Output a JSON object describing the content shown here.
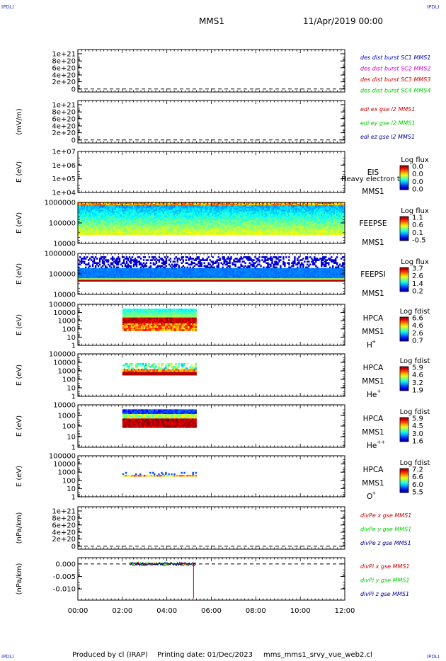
{
  "header": {
    "corner_left": "IPDLI",
    "corner_right": "IPDLI",
    "mission": "MMS1",
    "date": "11/Apr/2019 00:00"
  },
  "footer": {
    "corner_left": "IPDLI",
    "corner_right": "IPDLI",
    "produced": "Produced by cl (IRAP)",
    "printing": "Printing date: 01/Dec/2023",
    "template": "mms_mms1_srvy_vue_web2.cl"
  },
  "colors": {
    "axis": "#000000",
    "dashed": "#000000",
    "label_blue": "#0000cc",
    "label_magenta": "#cc00cc",
    "label_red": "#cc0000",
    "label_green": "#00cc00",
    "label_darkblue": "#000099"
  },
  "chart_data": {
    "type": "heatmap",
    "x_axis": {
      "range": [
        "00:00",
        "12:00"
      ],
      "tick_labels": [
        "00:00",
        "02:00",
        "04:00",
        "06:00",
        "08:00",
        "10:00",
        "12:00"
      ]
    },
    "panels": [
      {
        "kind": "line",
        "ylabel": "",
        "tick_labels": [
          "1e+21",
          "8e+20",
          "6e+20",
          "4e+20",
          "2e+20",
          "0"
        ],
        "legend": [
          {
            "text": "des dist burst SC1 MMS1",
            "color": "#0000cc"
          },
          {
            "text": "des dist burst SC2 MMS2",
            "color": "#cc00cc"
          },
          {
            "text": "des dist burst SC3 MMS3",
            "color": "#cc0000"
          },
          {
            "text": "des dist burst SC4 MMS4",
            "color": "#00cc00"
          }
        ],
        "zero_line": true
      },
      {
        "kind": "line",
        "ylabel": "(mV/m)",
        "tick_labels": [
          "1e+21",
          "8e+20",
          "6e+20",
          "4e+20",
          "2e+20",
          "0"
        ],
        "legend": [
          {
            "text": "edi ex gse l2 MMS1",
            "color": "#cc0000"
          },
          {
            "text": "edi ey gse l2 MMS1",
            "color": "#00cc00"
          },
          {
            "text": "edi ez gse l2 MMS1",
            "color": "#000099"
          }
        ],
        "zero_line": true
      },
      {
        "kind": "spectrogram",
        "ylabel": "E (eV)",
        "tick_labels": [
          "1e+07",
          "1e+06",
          "1e+05",
          "1e+04"
        ],
        "instrument": "EIS",
        "instrument_extra": "Heavy electron to",
        "spacecraft": "MMS1",
        "species": "",
        "colorbar": {
          "label": "Log flux",
          "ticks": [
            "0.0",
            "0.0",
            "0.0",
            "0.0"
          ]
        },
        "data_span": null,
        "style": "empty"
      },
      {
        "kind": "spectrogram",
        "ylabel": "E (eV)",
        "tick_labels": [
          "1000000",
          "100000",
          "10000"
        ],
        "instrument": "FEEPSE",
        "instrument_extra": "",
        "spacecraft": "MMS1",
        "species": "",
        "colorbar": {
          "label": "Log flux",
          "ticks": [
            "1.1",
            "0.6",
            "0.1",
            "-0.5"
          ]
        },
        "data_span": [
          "00:00",
          "12:00"
        ],
        "style": "feepse"
      },
      {
        "kind": "spectrogram",
        "ylabel": "E (eV)",
        "tick_labels": [
          "1000000",
          "100000",
          "10000"
        ],
        "instrument": "FEEPSI",
        "instrument_extra": "",
        "spacecraft": "MMS1",
        "species": "",
        "colorbar": {
          "label": "Log flux",
          "ticks": [
            "3.7",
            "2.6",
            "1.4",
            "0.2"
          ]
        },
        "data_span": [
          "00:00",
          "12:00"
        ],
        "style": "feepsi"
      },
      {
        "kind": "spectrogram",
        "ylabel": "E (eV)",
        "tick_labels": [
          "100000",
          "10000",
          "1000",
          "100",
          "10",
          "1"
        ],
        "instrument": "HPCA",
        "instrument_extra": "",
        "spacecraft": "MMS1",
        "species": "H",
        "species_charge": "+",
        "colorbar": {
          "label": "Log fdist",
          "ticks": [
            "6.6",
            "4.6",
            "2.6",
            "0.7"
          ]
        },
        "data_span": [
          "02:00",
          "05:20"
        ],
        "style": "hpca_h"
      },
      {
        "kind": "spectrogram",
        "ylabel": "E (eV)",
        "tick_labels": [
          "100000",
          "10000",
          "1000",
          "100",
          "10",
          "1"
        ],
        "instrument": "HPCA",
        "instrument_extra": "",
        "spacecraft": "MMS1",
        "species": "He",
        "species_charge": "+",
        "colorbar": {
          "label": "Log fdist",
          "ticks": [
            "5.9",
            "4.6",
            "3.2",
            "1.9"
          ]
        },
        "data_span": [
          "02:00",
          "05:20"
        ],
        "style": "hpca_he1"
      },
      {
        "kind": "spectrogram",
        "ylabel": "E (eV)",
        "tick_labels": [
          "10000",
          "1000",
          "100",
          "10",
          "1"
        ],
        "instrument": "HPCA",
        "instrument_extra": "",
        "spacecraft": "MMS1",
        "species": "He",
        "species_charge": "++",
        "colorbar": {
          "label": "Log fdist",
          "ticks": [
            "5.9",
            "4.5",
            "3.0",
            "1.6"
          ]
        },
        "data_span": [
          "02:00",
          "05:20"
        ],
        "style": "hpca_he2"
      },
      {
        "kind": "spectrogram",
        "ylabel": "E (eV)",
        "tick_labels": [
          "100000",
          "10000",
          "1000",
          "100",
          "10",
          "1"
        ],
        "instrument": "HPCA",
        "instrument_extra": "",
        "spacecraft": "MMS1",
        "species": "O",
        "species_charge": "+",
        "colorbar": {
          "label": "Log fdist",
          "ticks": [
            "7.2",
            "6.6",
            "6.0",
            "5.5"
          ]
        },
        "data_span": [
          "02:00",
          "05:20"
        ],
        "style": "hpca_o"
      },
      {
        "kind": "line",
        "ylabel": "(nPa/km)",
        "tick_labels": [
          "1e+21",
          "8e+20",
          "6e+20",
          "4e+20",
          "2e+20",
          "0"
        ],
        "legend": [
          {
            "text": "divPe x gse MMS1",
            "color": "#cc0000"
          },
          {
            "text": "divPe y gse MMS1",
            "color": "#00cc00"
          },
          {
            "text": "divPe z gse MMS1",
            "color": "#000099"
          }
        ],
        "zero_line": true
      },
      {
        "kind": "timeseries",
        "ylabel": "(nPa/km)",
        "tick_labels": [
          "0.000",
          "-0.005",
          "-0.010"
        ],
        "tick_values": [
          0.0,
          -0.005,
          -0.01
        ],
        "ylim": [
          -0.0145,
          0.0025
        ],
        "legend": [
          {
            "text": "divPi x gse MMS1",
            "color": "#cc0000"
          },
          {
            "text": "divPi y gse MMS1",
            "color": "#00cc00"
          },
          {
            "text": "divPi z gse MMS1",
            "color": "#000099"
          }
        ],
        "zero_line": true,
        "data_span": [
          "02:20",
          "05:20"
        ],
        "spike": {
          "time": "05:12",
          "value": -0.0138
        }
      }
    ]
  }
}
